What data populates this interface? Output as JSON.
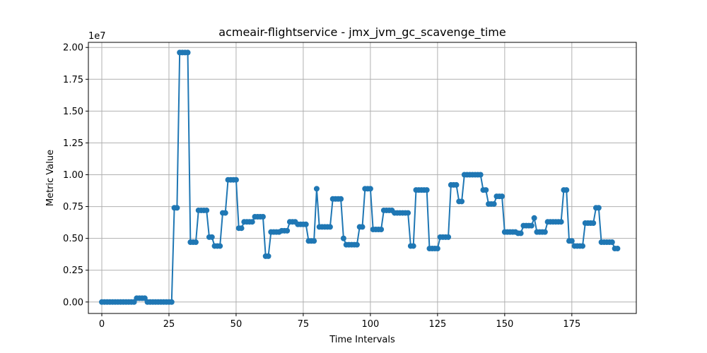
{
  "chart_data": {
    "type": "line",
    "title": "acmeair-flightservice - jmx_jvm_gc_scavenge_time",
    "xlabel": "Time Intervals",
    "ylabel": "Metric Value",
    "y_offset_text": "1e7",
    "y_multiplier": 10000000,
    "xlim": [
      -5,
      199
    ],
    "ylim": [
      -900000,
      20400000
    ],
    "x_ticks": [
      0,
      25,
      50,
      75,
      100,
      125,
      150,
      175
    ],
    "x_tick_labels": [
      "0",
      "25",
      "50",
      "75",
      "100",
      "125",
      "150",
      "175"
    ],
    "y_ticks": [
      0,
      2500000,
      5000000,
      7500000,
      10000000,
      12500000,
      15000000,
      17500000,
      20000000
    ],
    "y_tick_labels": [
      "0.00",
      "0.25",
      "0.50",
      "0.75",
      "1.00",
      "1.25",
      "1.50",
      "1.75",
      "2.00"
    ],
    "grid": true,
    "marker": "circle",
    "color": "#1f77b4",
    "series": [
      {
        "values": [
          0,
          0,
          0,
          0,
          0,
          0,
          0,
          0,
          0,
          0,
          0,
          0,
          0,
          300000,
          300000,
          300000,
          300000,
          0,
          0,
          0,
          0,
          0,
          0,
          0,
          0,
          0,
          0,
          7400000,
          7400000,
          19600000,
          19600000,
          19600000,
          19600000,
          4700000,
          4700000,
          4700000,
          7200000,
          7200000,
          7200000,
          7200000,
          5100000,
          5100000,
          4400000,
          4400000,
          4400000,
          7000000,
          7000000,
          9600000,
          9600000,
          9600000,
          9600000,
          5800000,
          5800000,
          6300000,
          6300000,
          6300000,
          6300000,
          6700000,
          6700000,
          6700000,
          6700000,
          3600000,
          3600000,
          5500000,
          5500000,
          5500000,
          5500000,
          5600000,
          5600000,
          5600000,
          6300000,
          6300000,
          6300000,
          6100000,
          6100000,
          6100000,
          6100000,
          4800000,
          4800000,
          4800000,
          8900000,
          5900000,
          5900000,
          5900000,
          5900000,
          5900000,
          8100000,
          8100000,
          8100000,
          8100000,
          5000000,
          4500000,
          4500000,
          4500000,
          4500000,
          4500000,
          5900000,
          5900000,
          8900000,
          8900000,
          8900000,
          5700000,
          5700000,
          5700000,
          5700000,
          7200000,
          7200000,
          7200000,
          7200000,
          7000000,
          7000000,
          7000000,
          7000000,
          7000000,
          7000000,
          4400000,
          4400000,
          8800000,
          8800000,
          8800000,
          8800000,
          8800000,
          4200000,
          4200000,
          4200000,
          4200000,
          5100000,
          5100000,
          5100000,
          5100000,
          9200000,
          9200000,
          9200000,
          7900000,
          7900000,
          10000000,
          10000000,
          10000000,
          10000000,
          10000000,
          10000000,
          10000000,
          8800000,
          8800000,
          7700000,
          7700000,
          7700000,
          8300000,
          8300000,
          8300000,
          5500000,
          5500000,
          5500000,
          5500000,
          5500000,
          5400000,
          5400000,
          6000000,
          6000000,
          6000000,
          6000000,
          6600000,
          5500000,
          5500000,
          5500000,
          5500000,
          6300000,
          6300000,
          6300000,
          6300000,
          6300000,
          6300000,
          8800000,
          8800000,
          4800000,
          4800000,
          4400000,
          4400000,
          4400000,
          4400000,
          6200000,
          6200000,
          6200000,
          6200000,
          7400000,
          7400000,
          4700000,
          4700000,
          4700000,
          4700000,
          4700000,
          4200000,
          4200000
        ]
      }
    ]
  }
}
